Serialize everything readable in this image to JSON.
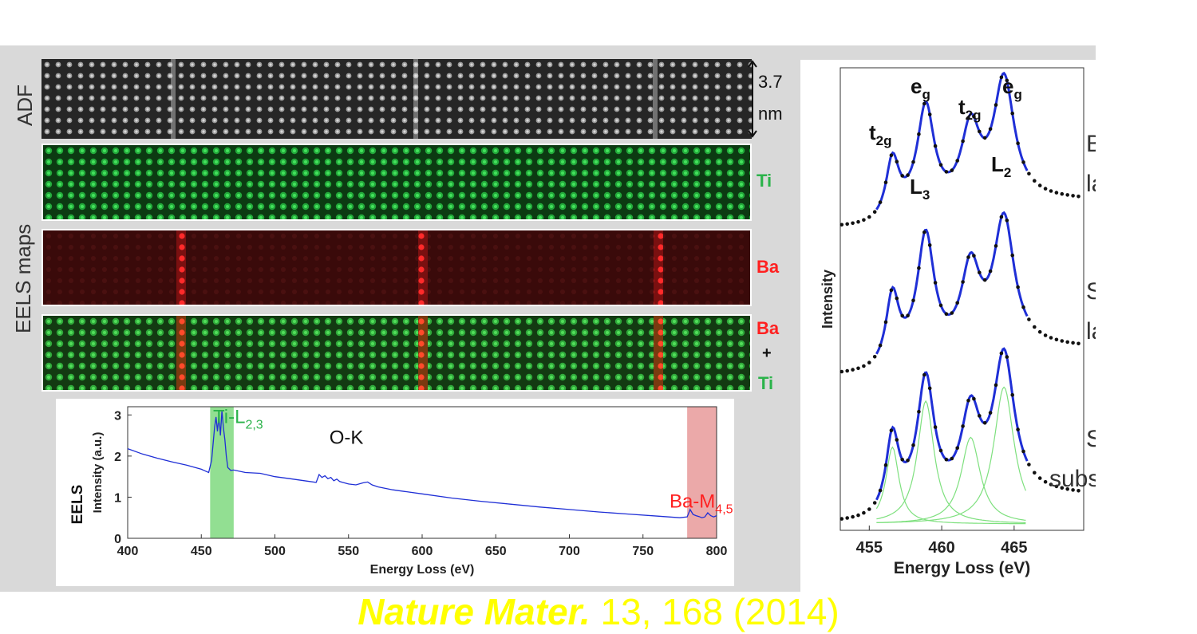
{
  "colors": {
    "ti_green": "#2bb34a",
    "ba_red": "#ff2020",
    "spectrum_blue": "#1f2fd6",
    "ti_band": "#7fd97f",
    "ba_band": "#e89a9a",
    "citation_yellow": "#ffff00"
  },
  "labels": {
    "adf": "ADF",
    "eels_maps": "EELS maps",
    "scale_value": "3.7",
    "scale_unit": "nm",
    "ti": "Ti",
    "ba": "Ba",
    "ba_combo": "Ba",
    "plus": "+",
    "ti_combo": "Ti"
  },
  "citation": {
    "journal": "Nature Mater.",
    "details": " 13, 168 (2014)"
  },
  "chart_data": [
    {
      "type": "line",
      "title": "",
      "xlabel": "Energy Loss (eV)",
      "ylabel": "Intensity (a.u.)",
      "ylabel_prefix": "EELS",
      "xlim": [
        400,
        800
      ],
      "ylim": [
        0,
        3.2
      ],
      "xticks": [
        "400",
        "450",
        "500",
        "550",
        "600",
        "650",
        "700",
        "750",
        "800"
      ],
      "yticks": [
        "0",
        "1",
        "2",
        "3"
      ],
      "grid": false,
      "annotations": [
        {
          "text": "Ti-L",
          "sub": "2,3",
          "x": 458,
          "y": 2.8,
          "color": "#2bb34a"
        },
        {
          "text": "O-K",
          "sub": "",
          "x": 537,
          "y": 2.3,
          "color": "#111111"
        },
        {
          "text": "Ba-M",
          "sub": "4,5",
          "x": 768,
          "y": 0.75,
          "color": "#ff2020"
        }
      ],
      "bands": [
        {
          "name": "Ti-L2,3",
          "from": 456,
          "to": 472
        },
        {
          "name": "Ba-M4,5",
          "from": 780,
          "to": 800
        }
      ],
      "series": [
        {
          "x": [
            400,
            410,
            420,
            430,
            440,
            450,
            455,
            457,
            459,
            460,
            461,
            462,
            463,
            464,
            465,
            466,
            467,
            468,
            470,
            472,
            480,
            490,
            500,
            510,
            520,
            528,
            530,
            532,
            534,
            536,
            538,
            540,
            542,
            544,
            546,
            550,
            555,
            560,
            563,
            566,
            570,
            580,
            600,
            620,
            640,
            660,
            680,
            700,
            720,
            740,
            760,
            775,
            780,
            782,
            784,
            786,
            788,
            790,
            792,
            794,
            796,
            798,
            800
          ],
          "values": [
            2.18,
            2.05,
            1.95,
            1.86,
            1.78,
            1.68,
            1.6,
            1.9,
            2.7,
            2.95,
            2.6,
            3.0,
            2.5,
            3.1,
            2.7,
            2.4,
            2.0,
            1.72,
            1.65,
            1.66,
            1.6,
            1.58,
            1.5,
            1.45,
            1.4,
            1.36,
            1.55,
            1.48,
            1.52,
            1.45,
            1.48,
            1.4,
            1.44,
            1.38,
            1.36,
            1.32,
            1.3,
            1.35,
            1.37,
            1.3,
            1.25,
            1.18,
            1.08,
            0.98,
            0.9,
            0.83,
            0.76,
            0.7,
            0.64,
            0.59,
            0.54,
            0.5,
            0.52,
            0.7,
            0.58,
            0.55,
            0.53,
            0.5,
            0.52,
            0.62,
            0.55,
            0.52,
            0.55
          ]
        }
      ]
    },
    {
      "type": "line",
      "title": "",
      "xlabel": "Energy Loss (eV)",
      "ylabel": "Intensity",
      "xlim": [
        453,
        469.8
      ],
      "xticks": [
        "455",
        "460",
        "465"
      ],
      "grid": false,
      "peak_positions_eV": [
        456.6,
        458.9,
        462.0,
        464.3
      ],
      "peak_labels": [
        {
          "text": "t",
          "sub": "2g",
          "eV": 456.4
        },
        {
          "text": "e",
          "sub": "g",
          "eV": 458.6
        },
        {
          "text": "t",
          "sub": "2g",
          "eV": 461.7
        },
        {
          "text": "e",
          "sub": "g",
          "eV": 464.1
        },
        {
          "text": "L",
          "sub": "3",
          "eV": 457.7
        },
        {
          "text": "L",
          "sub": "2",
          "eV": 462.8
        }
      ],
      "layers": [
        {
          "name_line1": "BTO",
          "name_line2": "layer",
          "fit": true,
          "components": false
        },
        {
          "name_line1": "STO",
          "name_line2": "layer",
          "fit": true,
          "components": false
        },
        {
          "name_line1": "STO",
          "name_line2": "substrate",
          "fit": true,
          "components": true
        }
      ]
    }
  ]
}
